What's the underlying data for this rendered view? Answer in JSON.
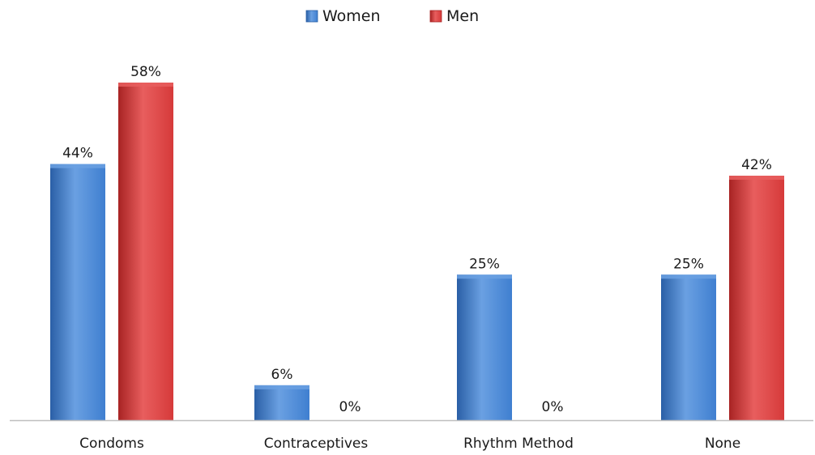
{
  "chart_data": {
    "type": "bar",
    "categories": [
      "Condoms",
      "Contraceptives",
      "Rhythm Method",
      "None"
    ],
    "series": [
      {
        "name": "Women",
        "values": [
          44,
          6,
          25,
          25
        ],
        "labels": [
          "44%",
          "6%",
          "25%",
          "25%"
        ],
        "color": "#3f7fd0",
        "color_dark": "#2a5fa6",
        "color_light": "#6aa0e2"
      },
      {
        "name": "Men",
        "values": [
          58,
          0,
          0,
          42
        ],
        "labels": [
          "58%",
          "0%",
          "0%",
          "42%"
        ],
        "color": "#d63a3a",
        "color_dark": "#a82323",
        "color_light": "#e85e5e"
      }
    ],
    "ylim": [
      0,
      58
    ],
    "grid": false,
    "legend_position": "top-center",
    "axis_color": "#bfbfbf"
  }
}
